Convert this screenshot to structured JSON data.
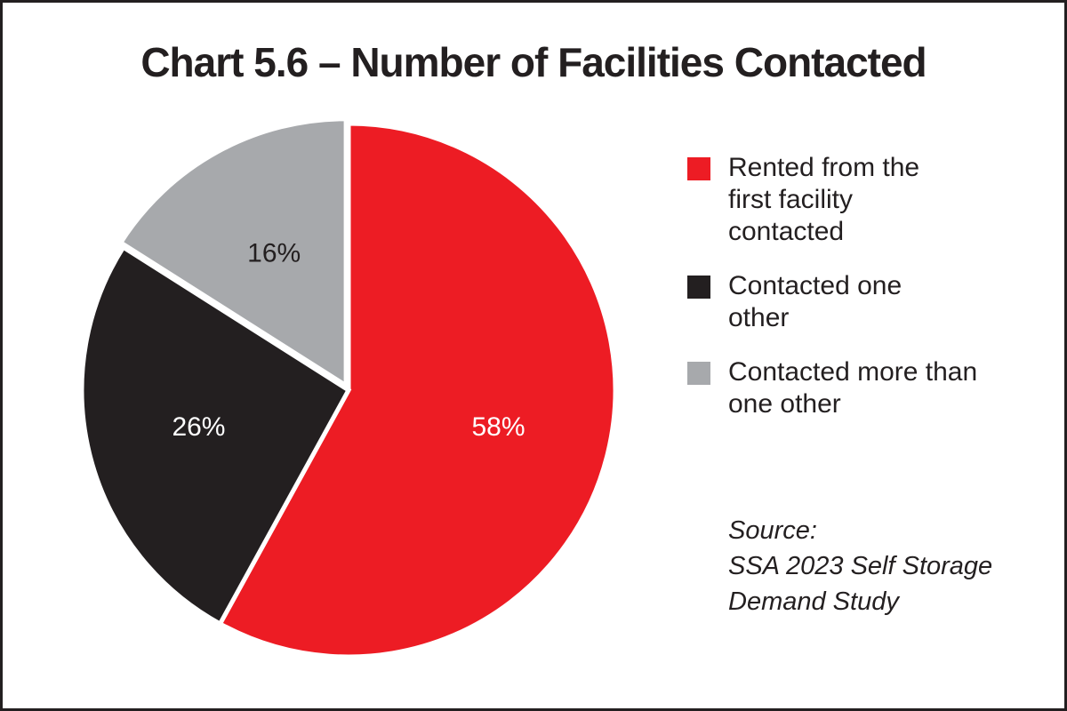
{
  "chart_data": {
    "type": "pie",
    "title": "Chart 5.6 – Number of Facilities Contacted",
    "categories": [
      "Rented from the first facility contacted",
      "Contacted one other",
      "Contacted more than one other"
    ],
    "values": [
      58,
      26,
      16
    ],
    "value_labels": [
      "58%",
      "26%",
      "16%"
    ],
    "colors": [
      "#ed1c24",
      "#231f20",
      "#a7a9ac"
    ],
    "label_colors": [
      "#ffffff",
      "#ffffff",
      "#231f20"
    ],
    "annotations": [
      "Source:",
      "SSA 2023 Self Storage Demand Study"
    ]
  }
}
